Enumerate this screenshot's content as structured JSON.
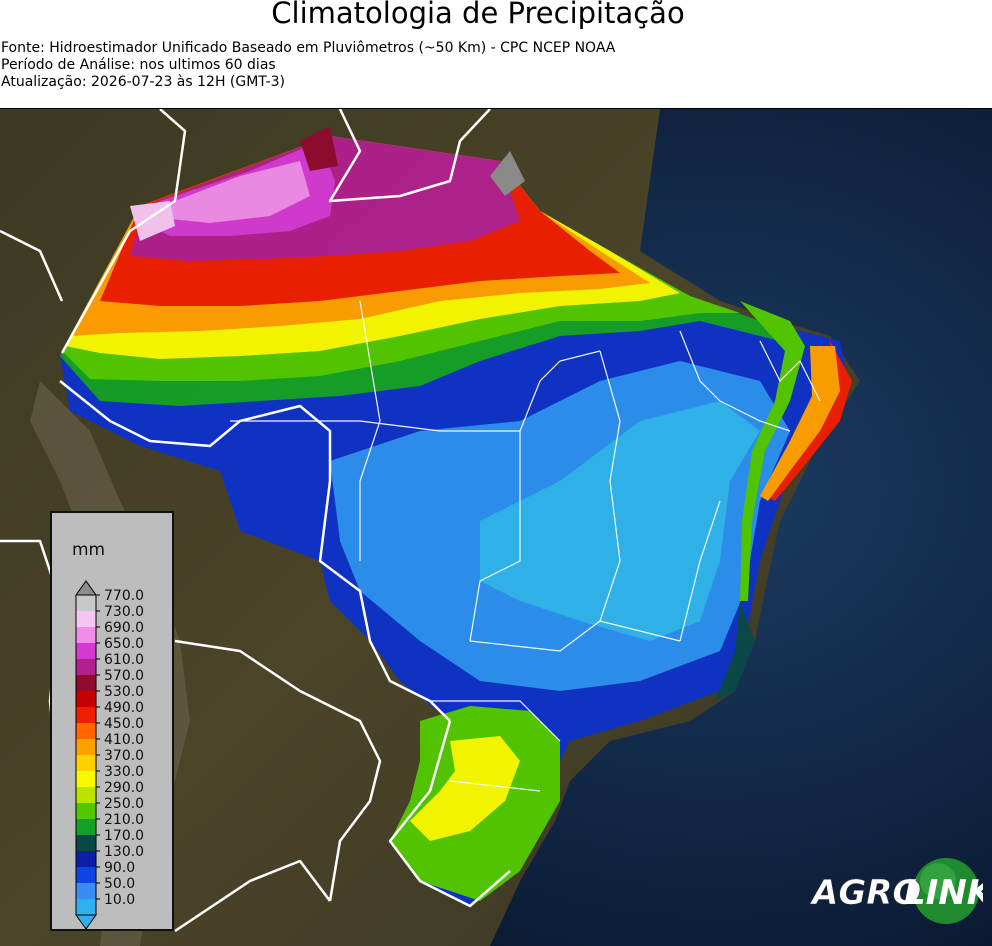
{
  "title": "Climatologia de Precipitação",
  "source_line": "Fonte: Hidroestimador Unificado Baseado em Pluviômetros (~50 Km) - CPC NCEP NOAA",
  "period_line": "Período de Análise: nos ultimos 60 dias",
  "update_line": "Atualização: 2026-07-23 às 12H (GMT-3)",
  "legend": {
    "unit": "mm",
    "levels": [
      "770.0",
      "730.0",
      "690.0",
      "650.0",
      "610.0",
      "570.0",
      "530.0",
      "490.0",
      "450.0",
      "410.0",
      "370.0",
      "330.0",
      "290.0",
      "250.0",
      "210.0",
      "170.0",
      "130.0",
      "90.0",
      "50.0",
      "10.0"
    ],
    "colors": [
      "#8c8c8c",
      "#c8c8c8",
      "#f6c6f2",
      "#f08ce8",
      "#d43ad2",
      "#b0208e",
      "#8e0b2e",
      "#c40000",
      "#ee1f00",
      "#ff6600",
      "#ff9f00",
      "#ffd000",
      "#f7f900",
      "#bde400",
      "#52c800",
      "#14a028",
      "#0a4848",
      "#0a1ea8",
      "#0e44e6",
      "#3a8cf0",
      "#2fb0ee"
    ],
    "accent_colors": {
      "frame": "#111111",
      "background": "#bdbdbd",
      "borders": "#ffffff"
    }
  },
  "logo": {
    "text_left": "AGRO",
    "text_right": "LINK",
    "green": "#1f8a2e"
  }
}
